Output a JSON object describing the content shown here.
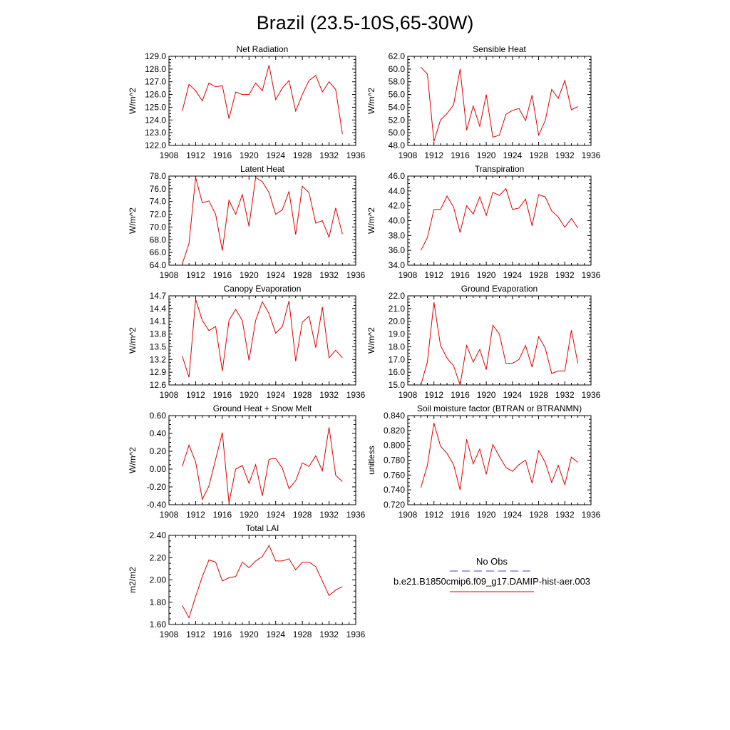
{
  "page": {
    "title": "Brazil (23.5-10S,65-30W)"
  },
  "legend": {
    "obs_label": "No Obs",
    "obs_color": "#4040c0",
    "model_label": "b.e21.B1850cmip6.f09_g17.DAMIP-hist-aer.003",
    "model_color": "#e00000"
  },
  "chart_data": [
    {
      "type": "line",
      "title": "Net Radiation",
      "ylabel": "W/m^2",
      "xlim": [
        1908,
        1936
      ],
      "xticks": [
        1908,
        1912,
        1916,
        1920,
        1924,
        1928,
        1932,
        1936
      ],
      "xtick_labels": [
        "1908",
        "1912",
        "1916",
        "1920",
        "1924",
        "1928",
        "1932",
        "1936"
      ],
      "ylim": [
        122.0,
        129.0
      ],
      "yticks": [
        122.0,
        123.0,
        124.0,
        125.0,
        126.0,
        127.0,
        128.0,
        129.0
      ],
      "ytick_labels": [
        "122.0",
        "123.0",
        "124.0",
        "125.0",
        "126.0",
        "127.0",
        "128.0",
        "129.0"
      ],
      "x": [
        1910,
        1911,
        1912,
        1913,
        1914,
        1915,
        1916,
        1917,
        1918,
        1919,
        1920,
        1921,
        1922,
        1923,
        1924,
        1925,
        1926,
        1927,
        1928,
        1929,
        1930,
        1931,
        1932,
        1933,
        1934
      ],
      "series": [
        {
          "values": [
            124.7,
            126.8,
            126.3,
            125.5,
            126.9,
            126.6,
            126.7,
            124.1,
            126.2,
            126.0,
            126.0,
            126.9,
            126.3,
            128.3,
            125.6,
            126.5,
            127.1,
            124.7,
            126.0,
            127.1,
            127.5,
            126.2,
            127.0,
            126.4,
            122.9
          ]
        }
      ]
    },
    {
      "type": "line",
      "title": "Sensible Heat",
      "ylabel": "W/m^2",
      "xlim": [
        1908,
        1936
      ],
      "xticks": [
        1908,
        1912,
        1916,
        1920,
        1924,
        1928,
        1932,
        1936
      ],
      "xtick_labels": [
        "1908",
        "1912",
        "1916",
        "1920",
        "1924",
        "1928",
        "1932",
        "1936"
      ],
      "ylim": [
        48.0,
        62.0
      ],
      "yticks": [
        48.0,
        50.0,
        52.0,
        54.0,
        56.0,
        58.0,
        60.0,
        62.0
      ],
      "ytick_labels": [
        "48.0",
        "50.0",
        "52.0",
        "54.0",
        "56.0",
        "58.0",
        "60.0",
        "62.0"
      ],
      "x": [
        1910,
        1911,
        1912,
        1913,
        1914,
        1915,
        1916,
        1917,
        1918,
        1919,
        1920,
        1921,
        1922,
        1923,
        1924,
        1925,
        1926,
        1927,
        1928,
        1929,
        1930,
        1931,
        1932,
        1933,
        1934
      ],
      "series": [
        {
          "values": [
            60.3,
            59.2,
            48.6,
            52.0,
            53.0,
            54.4,
            60.0,
            50.4,
            54.2,
            51.0,
            56.0,
            49.3,
            49.6,
            52.9,
            53.5,
            53.8,
            51.9,
            55.9,
            49.6,
            51.9,
            56.8,
            55.4,
            58.2,
            53.6,
            54.1
          ]
        }
      ]
    },
    {
      "type": "line",
      "title": "Latent Heat",
      "ylabel": "W/m^2",
      "xlim": [
        1908,
        1936
      ],
      "xticks": [
        1908,
        1912,
        1916,
        1920,
        1924,
        1928,
        1932,
        1936
      ],
      "xtick_labels": [
        "1908",
        "1912",
        "1916",
        "1920",
        "1924",
        "1928",
        "1932",
        "1936"
      ],
      "ylim": [
        64.0,
        78.0
      ],
      "yticks": [
        64.0,
        66.0,
        68.0,
        70.0,
        72.0,
        74.0,
        76.0,
        78.0
      ],
      "ytick_labels": [
        "64.0",
        "66.0",
        "68.0",
        "70.0",
        "72.0",
        "74.0",
        "76.0",
        "78.0"
      ],
      "x": [
        1910,
        1911,
        1912,
        1913,
        1914,
        1915,
        1916,
        1917,
        1918,
        1919,
        1920,
        1921,
        1922,
        1923,
        1924,
        1925,
        1926,
        1927,
        1928,
        1929,
        1930,
        1931,
        1932,
        1933,
        1934
      ],
      "series": [
        {
          "values": [
            64.2,
            67.4,
            77.8,
            73.8,
            74.1,
            72.0,
            66.3,
            74.2,
            72.0,
            75.1,
            70.1,
            77.8,
            77.1,
            75.4,
            72.0,
            72.7,
            75.6,
            68.8,
            76.4,
            75.4,
            70.6,
            71.0,
            68.4,
            73.0,
            68.9
          ]
        }
      ]
    },
    {
      "type": "line",
      "title": "Transpiration",
      "ylabel": "W/m^2",
      "xlim": [
        1908,
        1936
      ],
      "xticks": [
        1908,
        1912,
        1916,
        1920,
        1924,
        1928,
        1932,
        1936
      ],
      "xtick_labels": [
        "1908",
        "1912",
        "1916",
        "1920",
        "1924",
        "1928",
        "1932",
        "1936"
      ],
      "ylim": [
        34.0,
        46.0
      ],
      "yticks": [
        34.0,
        36.0,
        38.0,
        40.0,
        42.0,
        44.0,
        46.0
      ],
      "ytick_labels": [
        "34.0",
        "36.0",
        "38.0",
        "40.0",
        "42.0",
        "44.0",
        "46.0"
      ],
      "x": [
        1910,
        1911,
        1912,
        1913,
        1914,
        1915,
        1916,
        1917,
        1918,
        1919,
        1920,
        1921,
        1922,
        1923,
        1924,
        1925,
        1926,
        1927,
        1928,
        1929,
        1930,
        1931,
        1932,
        1933,
        1934
      ],
      "series": [
        {
          "values": [
            36.0,
            37.7,
            41.5,
            41.5,
            43.3,
            41.8,
            38.4,
            42.0,
            40.9,
            43.2,
            40.7,
            43.8,
            43.4,
            44.3,
            41.5,
            41.7,
            42.9,
            39.3,
            43.5,
            43.2,
            41.3,
            40.5,
            39.1,
            40.3,
            39.0
          ]
        }
      ]
    },
    {
      "type": "line",
      "title": "Canopy Evaporation",
      "ylabel": "W/m^2",
      "xlim": [
        1908,
        1936
      ],
      "xticks": [
        1908,
        1912,
        1916,
        1920,
        1924,
        1928,
        1932,
        1936
      ],
      "xtick_labels": [
        "1908",
        "1912",
        "1916",
        "1920",
        "1924",
        "1928",
        "1932",
        "1936"
      ],
      "ylim": [
        12.6,
        14.7
      ],
      "yticks": [
        12.6,
        12.9,
        13.2,
        13.5,
        13.8,
        14.1,
        14.4,
        14.7
      ],
      "ytick_labels": [
        "12.6",
        "12.9",
        "13.2",
        "13.5",
        "13.8",
        "14.1",
        "14.4",
        "14.7"
      ],
      "x": [
        1910,
        1911,
        1912,
        1913,
        1914,
        1915,
        1916,
        1917,
        1918,
        1919,
        1920,
        1921,
        1922,
        1923,
        1924,
        1925,
        1926,
        1927,
        1928,
        1929,
        1930,
        1931,
        1932,
        1933,
        1934
      ],
      "series": [
        {
          "values": [
            13.28,
            12.78,
            14.62,
            14.12,
            13.88,
            13.98,
            12.93,
            14.12,
            14.38,
            14.12,
            13.18,
            14.12,
            14.56,
            14.28,
            13.82,
            13.98,
            14.58,
            13.16,
            14.08,
            14.22,
            13.48,
            14.44,
            13.24,
            13.42,
            13.24
          ]
        }
      ]
    },
    {
      "type": "line",
      "title": "Ground Evaporation",
      "ylabel": "W/m^2",
      "xlim": [
        1908,
        1936
      ],
      "xticks": [
        1908,
        1912,
        1916,
        1920,
        1924,
        1928,
        1932,
        1936
      ],
      "xtick_labels": [
        "1908",
        "1912",
        "1916",
        "1920",
        "1924",
        "1928",
        "1932",
        "1936"
      ],
      "ylim": [
        15.0,
        22.0
      ],
      "yticks": [
        15.0,
        16.0,
        17.0,
        18.0,
        19.0,
        20.0,
        21.0,
        22.0
      ],
      "ytick_labels": [
        "15.0",
        "16.0",
        "17.0",
        "18.0",
        "19.0",
        "20.0",
        "21.0",
        "22.0"
      ],
      "x": [
        1910,
        1911,
        1912,
        1913,
        1914,
        1915,
        1916,
        1917,
        1918,
        1919,
        1920,
        1921,
        1922,
        1923,
        1924,
        1925,
        1926,
        1927,
        1928,
        1929,
        1930,
        1931,
        1932,
        1933,
        1934
      ],
      "series": [
        {
          "values": [
            15.0,
            16.8,
            21.5,
            18.1,
            17.1,
            16.5,
            15.0,
            18.1,
            16.8,
            17.8,
            16.2,
            19.7,
            19.0,
            16.7,
            16.7,
            17.0,
            18.1,
            16.4,
            18.8,
            17.9,
            15.9,
            16.1,
            16.1,
            19.3,
            16.7
          ]
        }
      ]
    },
    {
      "type": "line",
      "title": "Ground Heat + Snow Melt",
      "ylabel": "W/m^2",
      "xlim": [
        1908,
        1936
      ],
      "xticks": [
        1908,
        1912,
        1916,
        1920,
        1924,
        1928,
        1932,
        1936
      ],
      "xtick_labels": [
        "1908",
        "1912",
        "1916",
        "1920",
        "1924",
        "1928",
        "1932",
        "1936"
      ],
      "ylim": [
        -0.4,
        0.6
      ],
      "yticks": [
        -0.4,
        -0.2,
        0.0,
        0.2,
        0.4,
        0.6
      ],
      "ytick_labels": [
        "-0.40",
        "-0.20",
        "0.00",
        "0.20",
        "0.40",
        "0.60"
      ],
      "x": [
        1910,
        1911,
        1912,
        1913,
        1914,
        1915,
        1916,
        1917,
        1918,
        1919,
        1920,
        1921,
        1922,
        1923,
        1924,
        1925,
        1926,
        1927,
        1928,
        1929,
        1930,
        1931,
        1932,
        1933,
        1934
      ],
      "series": [
        {
          "values": [
            0.03,
            0.27,
            0.08,
            -0.34,
            -0.19,
            0.11,
            0.41,
            -0.38,
            0.0,
            0.04,
            -0.16,
            0.05,
            -0.3,
            0.11,
            0.12,
            0.01,
            -0.22,
            -0.13,
            0.07,
            0.03,
            0.15,
            -0.02,
            0.47,
            -0.07,
            -0.14
          ]
        }
      ]
    },
    {
      "type": "line",
      "title": "Soil moisture factor (BTRAN or BTRANMN)",
      "ylabel": "unitless",
      "xlim": [
        1908,
        1936
      ],
      "xticks": [
        1908,
        1912,
        1916,
        1920,
        1924,
        1928,
        1932,
        1936
      ],
      "xtick_labels": [
        "1908",
        "1912",
        "1916",
        "1920",
        "1924",
        "1928",
        "1932",
        "1936"
      ],
      "ylim": [
        0.72,
        0.84
      ],
      "yticks": [
        0.72,
        0.74,
        0.76,
        0.78,
        0.8,
        0.82,
        0.84
      ],
      "ytick_labels": [
        "0.720",
        "0.740",
        "0.760",
        "0.780",
        "0.800",
        "0.820",
        "0.840"
      ],
      "x": [
        1910,
        1911,
        1912,
        1913,
        1914,
        1915,
        1916,
        1917,
        1918,
        1919,
        1920,
        1921,
        1922,
        1923,
        1924,
        1925,
        1926,
        1927,
        1928,
        1929,
        1930,
        1931,
        1932,
        1933,
        1934
      ],
      "series": [
        {
          "values": [
            0.743,
            0.773,
            0.83,
            0.799,
            0.789,
            0.774,
            0.74,
            0.808,
            0.775,
            0.795,
            0.761,
            0.801,
            0.785,
            0.77,
            0.765,
            0.774,
            0.78,
            0.749,
            0.793,
            0.777,
            0.75,
            0.773,
            0.747,
            0.784,
            0.777
          ]
        }
      ]
    },
    {
      "type": "line",
      "title": "Total LAI",
      "ylabel": "m2/m2",
      "xlim": [
        1908,
        1936
      ],
      "xticks": [
        1908,
        1912,
        1916,
        1920,
        1924,
        1928,
        1932,
        1936
      ],
      "xtick_labels": [
        "1908",
        "1912",
        "1916",
        "1920",
        "1924",
        "1928",
        "1932",
        "1936"
      ],
      "ylim": [
        1.6,
        2.4
      ],
      "yticks": [
        1.6,
        1.8,
        2.0,
        2.2,
        2.4
      ],
      "ytick_labels": [
        "1.60",
        "1.80",
        "2.00",
        "2.20",
        "2.40"
      ],
      "x": [
        1910,
        1911,
        1912,
        1913,
        1914,
        1915,
        1916,
        1917,
        1918,
        1919,
        1920,
        1921,
        1922,
        1923,
        1924,
        1925,
        1926,
        1927,
        1928,
        1929,
        1930,
        1931,
        1932,
        1933,
        1934
      ],
      "series": [
        {
          "values": [
            1.77,
            1.66,
            1.85,
            2.03,
            2.18,
            2.16,
            1.99,
            2.02,
            2.03,
            2.16,
            2.11,
            2.17,
            2.21,
            2.31,
            2.17,
            2.17,
            2.19,
            2.09,
            2.16,
            2.16,
            2.12,
            1.99,
            1.86,
            1.91,
            1.94
          ]
        }
      ]
    }
  ]
}
